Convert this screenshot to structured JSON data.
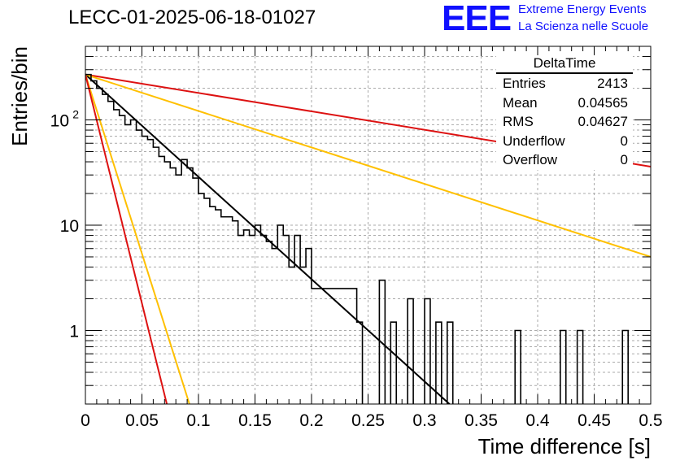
{
  "title": "LECC-01-2025-06-18-01027",
  "logo": {
    "text": "EEE",
    "line1": "Extreme Energy Events",
    "line2": "La Scienza nelle Scuole"
  },
  "stats": {
    "name": "DeltaTime",
    "rows": [
      {
        "label": "Entries",
        "value": "2413"
      },
      {
        "label": "Mean",
        "value": "0.04565"
      },
      {
        "label": "RMS",
        "value": "0.04627"
      },
      {
        "label": "Underflow",
        "value": "0"
      },
      {
        "label": "Overflow",
        "value": "0"
      }
    ]
  },
  "chart_data": {
    "type": "histogram",
    "xlabel": "Time difference [s]",
    "ylabel": "Entries/bin",
    "xlim": [
      0,
      0.5
    ],
    "ylim": [
      0.2,
      500
    ],
    "yscale": "log",
    "grid": true,
    "xticks": [
      "0",
      "0.05",
      "0.1",
      "0.15",
      "0.2",
      "0.25",
      "0.3",
      "0.35",
      "0.4",
      "0.45",
      "0.5"
    ],
    "yticks": [
      {
        "value": 1,
        "label": "1"
      },
      {
        "value": 10,
        "label": "10"
      },
      {
        "value": 100,
        "label": "10",
        "exp": "2"
      }
    ],
    "bin_width": 0.005,
    "bin_contents": [
      270,
      235,
      200,
      175,
      150,
      125,
      110,
      90,
      100,
      80,
      70,
      65,
      55,
      45,
      40,
      35,
      30,
      42,
      35,
      28,
      20,
      18,
      15,
      14,
      12,
      12,
      11,
      8,
      9,
      8,
      10,
      8,
      7,
      6,
      10,
      8,
      4,
      8,
      4,
      6,
      2.5,
      2.5,
      2.5,
      2.5,
      2.5,
      2.5,
      2.5,
      2.5,
      1.2,
      0,
      0,
      0,
      3,
      0,
      1.2,
      0,
      0,
      2,
      0,
      0,
      2,
      0,
      1.2,
      0,
      1.2,
      0,
      0,
      0,
      0,
      0,
      0,
      0,
      0,
      0,
      0,
      0,
      1,
      0,
      0,
      0,
      0,
      0,
      0,
      0,
      1,
      0,
      0,
      1,
      0,
      0,
      0,
      0,
      0,
      0,
      0,
      1,
      0,
      0,
      0,
      0
    ],
    "lines": [
      {
        "color": "#000000",
        "x": [
          0,
          0.322
        ],
        "y": [
          270,
          0.2
        ]
      },
      {
        "color": "#dd1111",
        "x": [
          0,
          0.5
        ],
        "y": [
          270,
          36
        ]
      },
      {
        "color": "#ffc000",
        "x": [
          0,
          0.5
        ],
        "y": [
          270,
          5
        ]
      },
      {
        "color": "#ffc000",
        "x": [
          0,
          0.092
        ],
        "y": [
          270,
          0.2
        ]
      },
      {
        "color": "#dd1111",
        "x": [
          0,
          0.072
        ],
        "y": [
          270,
          0.2
        ]
      }
    ]
  }
}
